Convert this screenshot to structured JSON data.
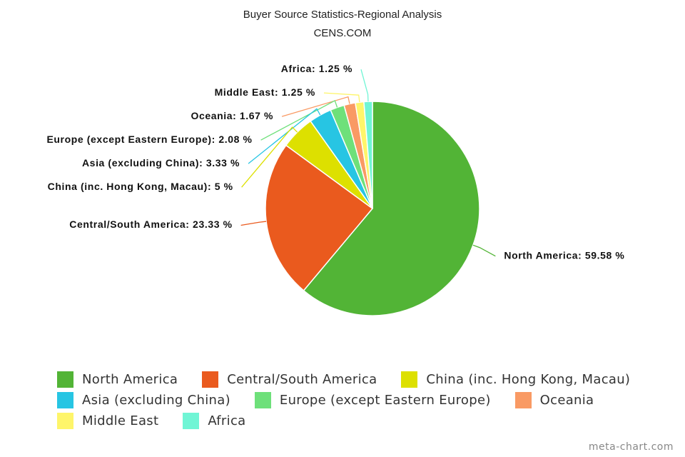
{
  "chart_data": {
    "type": "pie",
    "title": "Buyer Source Statistics-Regional Analysis",
    "subtitle": "CENS.COM",
    "categories": [
      "North America",
      "Central/South America",
      "China (inc. Hong Kong, Macau)",
      "Asia (excluding China)",
      "Europe (except Eastern Europe)",
      "Oceania",
      "Middle East",
      "Africa"
    ],
    "values": [
      59.58,
      23.33,
      5,
      3.33,
      2.08,
      1.67,
      1.25,
      1.25
    ],
    "value_labels": [
      "North America: 59.58 %",
      "Central/South America: 23.33 %",
      "China (inc. Hong Kong, Macau): 5 %",
      "Asia (excluding China): 3.33 %",
      "Europe (except Eastern Europe): 2.08 %",
      "Oceania: 1.67 %",
      "Middle East: 1.25 %",
      "Africa: 1.25 %"
    ],
    "colors": [
      "#52b436",
      "#ea5a1e",
      "#dde000",
      "#27c5e3",
      "#6ee07a",
      "#f99a64",
      "#fef56a",
      "#70f5d5"
    ],
    "legend": "bottom",
    "credit": "meta-chart.com"
  }
}
